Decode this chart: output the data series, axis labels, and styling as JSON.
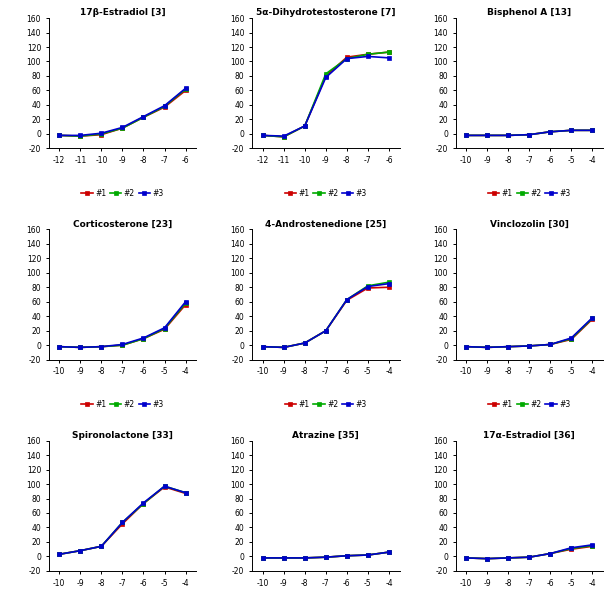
{
  "subplots": [
    {
      "title": "17β-Estradiol [3]",
      "xvals": [
        -12,
        -11,
        -10,
        -9,
        -8,
        -7,
        -6
      ],
      "series": [
        {
          "label": "#1",
          "color": "#cc0000",
          "values": [
            -2,
            -3,
            -1,
            8,
            23,
            37,
            60
          ]
        },
        {
          "label": "#2",
          "color": "#00aa00",
          "values": [
            -2,
            -3,
            0,
            8,
            23,
            38,
            62
          ]
        },
        {
          "label": "#3",
          "color": "#0000cc",
          "values": [
            -2,
            -2,
            1,
            9,
            24,
            39,
            63
          ]
        }
      ],
      "xlim": [
        -12.5,
        -5.5
      ],
      "xticks": [
        -12,
        -11,
        -10,
        -9,
        -8,
        -7,
        -6
      ]
    },
    {
      "title": "5α-Dihydrotestosterone [7]",
      "xvals": [
        -12,
        -11,
        -10,
        -9,
        -8,
        -7,
        -6
      ],
      "series": [
        {
          "label": "#1",
          "color": "#cc0000",
          "values": [
            -2,
            -4,
            11,
            80,
            106,
            110,
            113
          ]
        },
        {
          "label": "#2",
          "color": "#00aa00",
          "values": [
            -2,
            -4,
            11,
            83,
            104,
            110,
            113
          ]
        },
        {
          "label": "#3",
          "color": "#0000cc",
          "values": [
            -2,
            -3,
            11,
            78,
            104,
            107,
            105
          ]
        }
      ],
      "xlim": [
        -12.5,
        -5.5
      ],
      "xticks": [
        -12,
        -11,
        -10,
        -9,
        -8,
        -7,
        -6
      ]
    },
    {
      "title": "Bisphenol A [13]",
      "xvals": [
        -10,
        -9,
        -8,
        -7,
        -6,
        -5,
        -4
      ],
      "series": [
        {
          "label": "#1",
          "color": "#cc0000",
          "values": [
            -2,
            -2,
            -2,
            -1,
            3,
            5,
            5
          ]
        },
        {
          "label": "#2",
          "color": "#00aa00",
          "values": [
            -2,
            -2,
            -2,
            -1,
            3,
            5,
            5
          ]
        },
        {
          "label": "#3",
          "color": "#0000cc",
          "values": [
            -2,
            -2,
            -2,
            -1,
            3,
            5,
            5
          ]
        }
      ],
      "xlim": [
        -10.5,
        -3.5
      ],
      "xticks": [
        -10,
        -9,
        -8,
        -7,
        -6,
        -5,
        -4
      ]
    },
    {
      "title": "Corticosterone [23]",
      "xvals": [
        -10,
        -9,
        -8,
        -7,
        -6,
        -5,
        -4
      ],
      "series": [
        {
          "label": "#1",
          "color": "#cc0000",
          "values": [
            -2,
            -3,
            -2,
            0,
            9,
            22,
            56
          ]
        },
        {
          "label": "#2",
          "color": "#00aa00",
          "values": [
            -2,
            -3,
            -2,
            0,
            9,
            23,
            58
          ]
        },
        {
          "label": "#3",
          "color": "#0000cc",
          "values": [
            -2,
            -3,
            -2,
            1,
            10,
            24,
            60
          ]
        }
      ],
      "xlim": [
        -10.5,
        -3.5
      ],
      "xticks": [
        -10,
        -9,
        -8,
        -7,
        -6,
        -5,
        -4
      ]
    },
    {
      "title": "4-Androstenedione [25]",
      "xvals": [
        -10,
        -9,
        -8,
        -7,
        -6,
        -5,
        -4
      ],
      "series": [
        {
          "label": "#1",
          "color": "#cc0000",
          "values": [
            -2,
            -3,
            3,
            20,
            62,
            79,
            80
          ]
        },
        {
          "label": "#2",
          "color": "#00aa00",
          "values": [
            -2,
            -3,
            3,
            20,
            63,
            82,
            87
          ]
        },
        {
          "label": "#3",
          "color": "#0000cc",
          "values": [
            -2,
            -3,
            3,
            20,
            63,
            81,
            85
          ]
        }
      ],
      "xlim": [
        -10.5,
        -3.5
      ],
      "xticks": [
        -10,
        -9,
        -8,
        -7,
        -6,
        -5,
        -4
      ]
    },
    {
      "title": "Vinclozolin [30]",
      "xvals": [
        -10,
        -9,
        -8,
        -7,
        -6,
        -5,
        -4
      ],
      "series": [
        {
          "label": "#1",
          "color": "#cc0000",
          "values": [
            -2,
            -3,
            -2,
            -1,
            1,
            8,
            36
          ]
        },
        {
          "label": "#2",
          "color": "#00aa00",
          "values": [
            -2,
            -3,
            -2,
            -1,
            1,
            9,
            37
          ]
        },
        {
          "label": "#3",
          "color": "#0000cc",
          "values": [
            -2,
            -3,
            -2,
            -1,
            1,
            10,
            38
          ]
        }
      ],
      "xlim": [
        -10.5,
        -3.5
      ],
      "xticks": [
        -10,
        -9,
        -8,
        -7,
        -6,
        -5,
        -4
      ]
    },
    {
      "title": "Spironolactone [33]",
      "xvals": [
        -10,
        -9,
        -8,
        -7,
        -6,
        -5,
        -4
      ],
      "series": [
        {
          "label": "#1",
          "color": "#cc0000",
          "values": [
            3,
            8,
            14,
            45,
            73,
            96,
            87
          ]
        },
        {
          "label": "#2",
          "color": "#00aa00",
          "values": [
            3,
            8,
            14,
            47,
            73,
            97,
            88
          ]
        },
        {
          "label": "#3",
          "color": "#0000cc",
          "values": [
            3,
            8,
            14,
            47,
            74,
            97,
            88
          ]
        }
      ],
      "xlim": [
        -10.5,
        -3.5
      ],
      "xticks": [
        -10,
        -9,
        -8,
        -7,
        -6,
        -5,
        -4
      ]
    },
    {
      "title": "Atrazine [35]",
      "xvals": [
        -10,
        -9,
        -8,
        -7,
        -6,
        -5,
        -4
      ],
      "series": [
        {
          "label": "#1",
          "color": "#cc0000",
          "values": [
            -2,
            -2,
            -2,
            -1,
            1,
            2,
            6
          ]
        },
        {
          "label": "#2",
          "color": "#00aa00",
          "values": [
            -2,
            -2,
            -2,
            -1,
            1,
            2,
            6
          ]
        },
        {
          "label": "#3",
          "color": "#0000cc",
          "values": [
            -2,
            -2,
            -2,
            -1,
            1,
            2,
            6
          ]
        }
      ],
      "xlim": [
        -10.5,
        -3.5
      ],
      "xticks": [
        -10,
        -9,
        -8,
        -7,
        -6,
        -5,
        -4
      ]
    },
    {
      "title": "17α-Estradiol [36]",
      "xvals": [
        -10,
        -9,
        -8,
        -7,
        -6,
        -5,
        -4
      ],
      "series": [
        {
          "label": "#1",
          "color": "#cc0000",
          "values": [
            -2,
            -3,
            -2,
            -1,
            4,
            10,
            14
          ]
        },
        {
          "label": "#2",
          "color": "#00aa00",
          "values": [
            -2,
            -3,
            -2,
            -1,
            4,
            11,
            15
          ]
        },
        {
          "label": "#3",
          "color": "#0000cc",
          "values": [
            -2,
            -3,
            -2,
            -1,
            4,
            12,
            16
          ]
        }
      ],
      "xlim": [
        -10.5,
        -3.5
      ],
      "xticks": [
        -10,
        -9,
        -8,
        -7,
        -6,
        -5,
        -4
      ]
    }
  ],
  "ylim": [
    -20,
    160
  ],
  "yticks": [
    -20,
    0,
    20,
    40,
    60,
    80,
    100,
    120,
    140,
    160
  ],
  "marker": "s",
  "markersize": 3,
  "linewidth": 1.2,
  "title_fontsize": 6.5,
  "tick_fontsize": 5.5,
  "legend_fontsize": 5.5
}
